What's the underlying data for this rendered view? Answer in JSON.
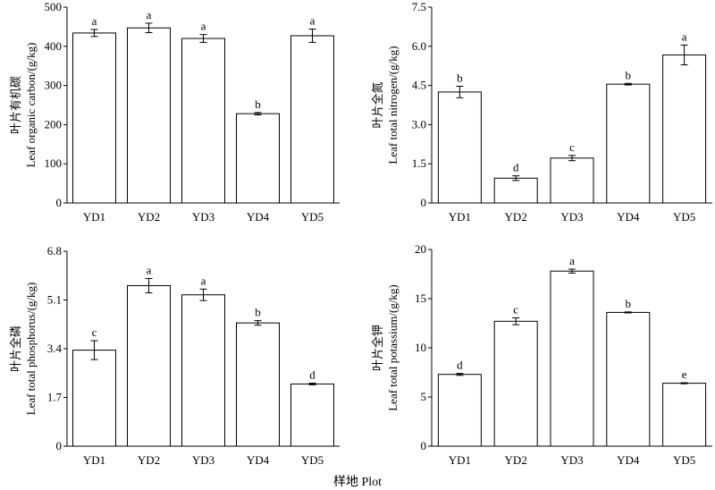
{
  "x_axis_label": "样地 Plot",
  "chart_data": [
    {
      "type": "bar",
      "ylabel_line1": "叶片有机碳",
      "ylabel_line2": "Leaf organic carbon/(g/kg)",
      "categories": [
        "YD1",
        "YD2",
        "YD3",
        "YD4",
        "YD5"
      ],
      "values": [
        434,
        447,
        420,
        228,
        427
      ],
      "errors": [
        9,
        12,
        10,
        3,
        17
      ],
      "significance": [
        "a",
        "a",
        "a",
        "b",
        "a"
      ],
      "ylim": [
        0,
        500
      ],
      "yticks": [
        "0",
        "100",
        "200",
        "300",
        "400",
        "500"
      ]
    },
    {
      "type": "bar",
      "ylabel_line1": "叶片全氮",
      "ylabel_line2": "Leaf total nitrogen/(g/kg)",
      "categories": [
        "YD1",
        "YD2",
        "YD3",
        "YD4",
        "YD5"
      ],
      "values": [
        4.25,
        0.95,
        1.72,
        4.55,
        5.67
      ],
      "errors": [
        0.22,
        0.09,
        0.1,
        0.03,
        0.38
      ],
      "significance": [
        "b",
        "d",
        "c",
        "b",
        "a"
      ],
      "ylim": [
        0,
        7.5
      ],
      "yticks": [
        "0",
        "1.5",
        "3.0",
        "4.5",
        "6.0",
        "7.5"
      ]
    },
    {
      "type": "bar",
      "ylabel_line1": "叶片全磷",
      "ylabel_line2": "Leaf total phosphorus/(g/kg)",
      "categories": [
        "YD1",
        "YD2",
        "YD3",
        "YD4",
        "YD5"
      ],
      "values": [
        3.35,
        5.6,
        5.28,
        4.3,
        2.17
      ],
      "errors": [
        0.33,
        0.25,
        0.2,
        0.08,
        0.03
      ],
      "significance": [
        "c",
        "a",
        "a",
        "b",
        "d"
      ],
      "ylim": [
        0,
        6.8
      ],
      "yticks": [
        "0",
        "1.7",
        "3.4",
        "5.1",
        "6.8"
      ]
    },
    {
      "type": "bar",
      "ylabel_line1": "叶片全钾",
      "ylabel_line2": "Leaf total potassium/(g/kg)",
      "categories": [
        "YD1",
        "YD2",
        "YD3",
        "YD4",
        "YD5"
      ],
      "values": [
        7.3,
        12.7,
        17.8,
        13.6,
        6.4
      ],
      "errors": [
        0.1,
        0.35,
        0.2,
        0.05,
        0.05
      ],
      "significance": [
        "d",
        "c",
        "a",
        "b",
        "e"
      ],
      "ylim": [
        0,
        20
      ],
      "yticks": [
        "0",
        "5",
        "10",
        "15",
        "20"
      ]
    }
  ]
}
